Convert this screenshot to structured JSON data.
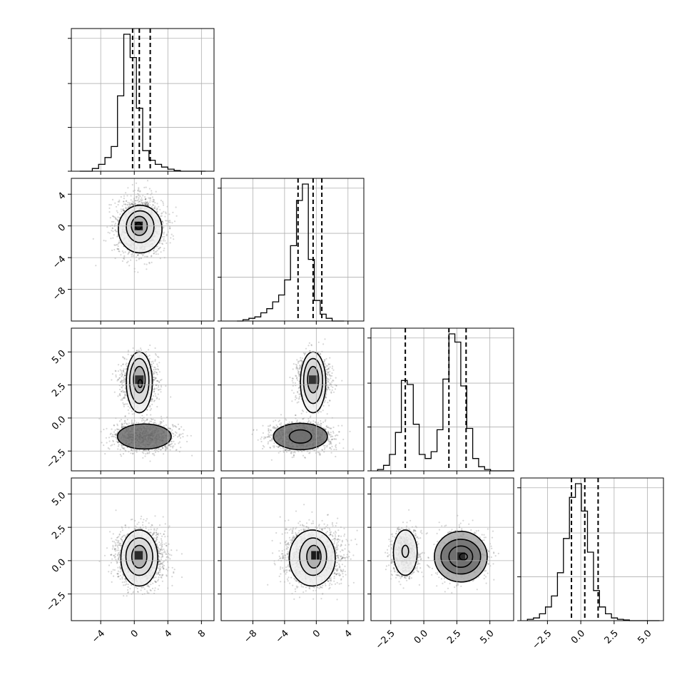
{
  "chart_data": {
    "type": "corner",
    "grid": true,
    "variables": [
      {
        "range": [
          -7.5,
          9.5
        ],
        "ticks": [
          -4,
          0,
          4,
          8
        ],
        "tick_labels": [
          "−4",
          "0",
          "4",
          "8"
        ],
        "quantiles": [
          -0.2,
          0.6,
          1.9
        ],
        "hist": {
          "start": -6.5,
          "step": 0.75,
          "counts": [
            0,
            0,
            0.02,
            0.05,
            0.1,
            0.18,
            0.55,
            1.0,
            0.83,
            0.46,
            0.15,
            0.08,
            0.05,
            0.03,
            0.015,
            0.005,
            0,
            0,
            0,
            0
          ]
        }
      },
      {
        "range": [
          -12,
          6
        ],
        "ticks": [
          -8,
          -4,
          0,
          4
        ],
        "tick_labels": [
          "−8",
          "−4",
          "0",
          "4"
        ],
        "quantiles": [
          -2.3,
          -0.4,
          0.7
        ],
        "hist": {
          "start": -10,
          "step": 0.75,
          "counts": [
            0,
            0.01,
            0.02,
            0.03,
            0.06,
            0.09,
            0.14,
            0.19,
            0.3,
            0.55,
            0.88,
            1.0,
            0.45,
            0.15,
            0.05,
            0.02,
            0,
            0
          ]
        }
      },
      {
        "range": [
          -4,
          6.8
        ],
        "ticks": [
          -2.5,
          0,
          2.5,
          5
        ],
        "tick_labels": [
          "−2.5",
          "0.0",
          "2.5",
          "5.0"
        ],
        "quantiles": [
          -1.4,
          1.9,
          3.2
        ],
        "hist": {
          "start": -3.5,
          "step": 0.45,
          "counts": [
            0.01,
            0.04,
            0.12,
            0.28,
            0.66,
            0.63,
            0.34,
            0.12,
            0.09,
            0.14,
            0.3,
            0.67,
            1.0,
            0.94,
            0.62,
            0.31,
            0.09,
            0.03,
            0.01,
            0,
            0,
            0,
            0
          ]
        }
      },
      {
        "range": [
          -4.5,
          6.2
        ],
        "ticks": [
          -2.5,
          0,
          2.5,
          5
        ],
        "tick_labels": [
          "−2.5",
          "0.0",
          "2.5",
          "5.0"
        ],
        "quantiles": [
          -0.7,
          0.3,
          1.3
        ],
        "hist": {
          "start": -4,
          "step": 0.45,
          "counts": [
            0.01,
            0.02,
            0.05,
            0.1,
            0.18,
            0.35,
            0.6,
            0.9,
            1.0,
            0.8,
            0.5,
            0.22,
            0.1,
            0.05,
            0.02,
            0.01,
            0.005,
            0,
            0,
            0,
            0,
            0
          ]
        }
      }
    ],
    "pairs": [
      {
        "row": 1,
        "col": 0,
        "clusters": [
          {
            "mx": 0.7,
            "my": -0.1,
            "sx": 1.35,
            "sy": 1.75,
            "n": 2200
          }
        ],
        "contours": [
          {
            "cx": 0.7,
            "cy": -0.4,
            "rx": 2.6,
            "ry": 3.0
          },
          {
            "cx": 0.7,
            "cy": -0.1,
            "rx": 1.65,
            "ry": 2.0
          },
          {
            "cx": 0.6,
            "cy": 0.0,
            "rx": 0.95,
            "ry": 1.2
          },
          {
            "cx": 0.5,
            "cy": 0.0,
            "rx": 0.35,
            "ry": 0.45
          }
        ],
        "core": {
          "cx": 0.5,
          "cy": 0.0,
          "shade": "#1a1a1a"
        }
      },
      {
        "row": 2,
        "col": 0,
        "clusters": [
          {
            "mx": 0.6,
            "my": 2.8,
            "sx": 1.0,
            "sy": 0.9,
            "n": 1500
          },
          {
            "mx": 1.2,
            "my": -1.4,
            "sx": 1.8,
            "sy": 0.55,
            "n": 1300
          }
        ],
        "contours": [
          {
            "cx": 0.6,
            "cy": 2.7,
            "rx": 1.55,
            "ry": 2.3
          },
          {
            "cx": 0.6,
            "cy": 2.8,
            "rx": 1.15,
            "ry": 1.7
          },
          {
            "cx": 0.6,
            "cy": 2.9,
            "rx": 0.7,
            "ry": 1.0
          },
          {
            "cx": 0.7,
            "cy": 2.6,
            "rx": 0.25,
            "ry": 0.3
          },
          {
            "cx": 1.2,
            "cy": -1.4,
            "rx": 3.2,
            "ry": 0.95
          }
        ],
        "core": {
          "cx": 0.6,
          "cy": 2.9,
          "shade": "#333333"
        }
      },
      {
        "row": 2,
        "col": 1,
        "clusters": [
          {
            "mx": -0.4,
            "my": 2.8,
            "sx": 1.0,
            "sy": 0.9,
            "n": 1500
          },
          {
            "mx": -2.0,
            "my": -1.4,
            "sx": 2.0,
            "sy": 0.55,
            "n": 1300
          }
        ],
        "contours": [
          {
            "cx": -0.4,
            "cy": 2.7,
            "rx": 1.6,
            "ry": 2.3
          },
          {
            "cx": -0.4,
            "cy": 2.8,
            "rx": 1.2,
            "ry": 1.7
          },
          {
            "cx": -0.4,
            "cy": 2.9,
            "rx": 0.7,
            "ry": 1.0
          },
          {
            "cx": -2.0,
            "cy": -1.4,
            "rx": 3.4,
            "ry": 1.0
          },
          {
            "cx": -2.0,
            "cy": -1.4,
            "rx": 1.4,
            "ry": 0.5
          }
        ],
        "core": {
          "cx": -0.4,
          "cy": 2.9,
          "shade": "#333333"
        }
      },
      {
        "row": 3,
        "col": 0,
        "clusters": [
          {
            "mx": 0.6,
            "my": 0.3,
            "sx": 1.35,
            "sy": 1.0,
            "n": 2400
          }
        ],
        "contours": [
          {
            "cx": 0.6,
            "cy": 0.2,
            "rx": 2.2,
            "ry": 2.1
          },
          {
            "cx": 0.6,
            "cy": 0.3,
            "rx": 1.6,
            "ry": 1.4
          },
          {
            "cx": 0.6,
            "cy": 0.3,
            "rx": 0.9,
            "ry": 0.85
          }
        ],
        "core": {
          "cx": 0.5,
          "cy": 0.4,
          "shade": "#2a2a2a"
        }
      },
      {
        "row": 3,
        "col": 1,
        "clusters": [
          {
            "mx": -0.4,
            "my": 0.3,
            "sx": 1.7,
            "sy": 1.0,
            "n": 2400
          }
        ],
        "contours": [
          {
            "cx": -0.5,
            "cy": 0.2,
            "rx": 2.9,
            "ry": 2.1
          },
          {
            "cx": -0.4,
            "cy": 0.3,
            "rx": 1.7,
            "ry": 1.4
          },
          {
            "cx": -0.3,
            "cy": 0.3,
            "rx": 0.9,
            "ry": 0.85
          }
        ],
        "core": {
          "cx": -0.1,
          "cy": 0.4,
          "shade": "#1a1a1a"
        }
      },
      {
        "row": 3,
        "col": 2,
        "clusters": [
          {
            "mx": -1.4,
            "my": 0.6,
            "sx": 0.5,
            "sy": 0.85,
            "n": 1100
          },
          {
            "mx": 2.8,
            "my": 0.3,
            "sx": 0.85,
            "sy": 0.85,
            "n": 1500
          }
        ],
        "contours": [
          {
            "cx": -1.4,
            "cy": 0.6,
            "rx": 0.9,
            "ry": 1.7
          },
          {
            "cx": -1.4,
            "cy": 0.7,
            "rx": 0.25,
            "ry": 0.45
          },
          {
            "cx": 2.8,
            "cy": 0.3,
            "rx": 2.0,
            "ry": 1.9
          },
          {
            "cx": 2.8,
            "cy": 0.3,
            "rx": 1.5,
            "ry": 1.3
          },
          {
            "cx": 2.8,
            "cy": 0.3,
            "rx": 0.9,
            "ry": 0.8
          },
          {
            "cx": 3.0,
            "cy": 0.3,
            "rx": 0.3,
            "ry": 0.25
          }
        ],
        "core": {
          "cx": 2.8,
          "cy": 0.3,
          "shade": "#2a2a2a"
        }
      }
    ]
  }
}
